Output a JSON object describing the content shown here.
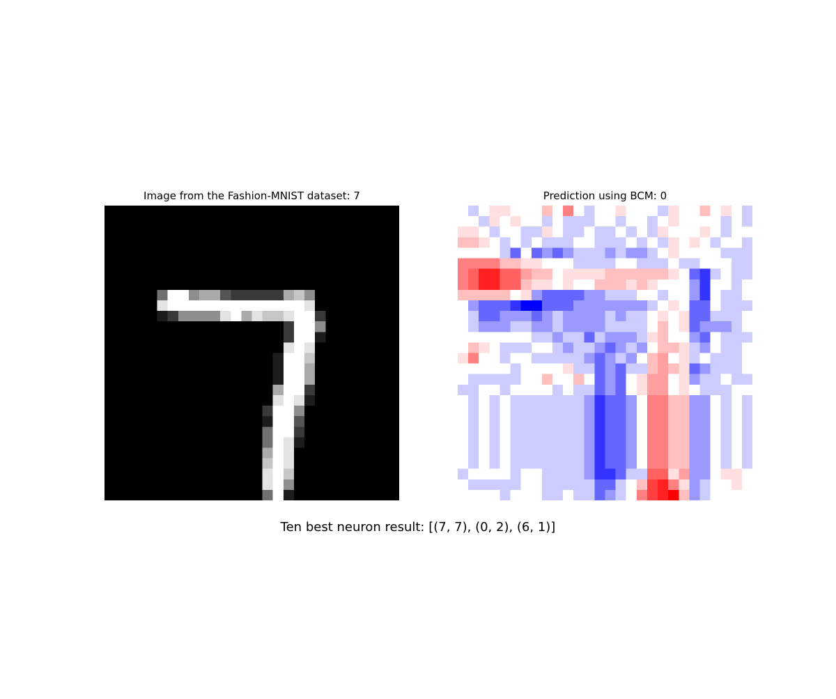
{
  "chart_data": [
    {
      "type": "heatmap",
      "title": "Image from the Fashion-MNIST dataset: 7",
      "colormap": "gray",
      "value_range": [
        0,
        1
      ],
      "grid": false,
      "axes": "off",
      "rows": [
        "0000000000000000000000000000",
        "0000000000000000000000000000",
        "0000000000000000000000000000",
        "0000000000000000000000000000",
        "0000000000000000000000000000",
        "0000000000000000000000000000",
        "0000000000000000000000000000",
        "0000000000000000000000000000",
        "0000000000000000000000000000",
        "0000000000000000000000000000",
        "0000000000000000000000000000",
        "0000000000000000000000000000",
        "0000000000000000000000000000",
        "0000000000000000000000000000",
        "0000000000000000000000000000",
        "0000000000000000000000000000",
        "0000000000000000000000000000",
        "0000000000000000000000000000",
        "0000000000000000000000000000",
        "0000000000000000000000000000",
        "0000000000000000000000000000",
        "0000000000000000000000000000",
        "0000000000000000000000000000",
        "0000000000000000000000000000",
        "0000000000000000000000000000",
        "0000000000000000000000000000",
        "0000000000000000000000000000",
        "0000000000000000000000000000"
      ],
      "patches": [
        {
          "row": 8,
          "cells": [
            [
              5,
              "4"
            ],
            [
              6,
              "9"
            ],
            [
              7,
              "9"
            ],
            [
              8,
              "5"
            ],
            [
              9,
              "6"
            ],
            [
              10,
              "6"
            ],
            [
              11,
              "3"
            ],
            [
              12,
              "2"
            ],
            [
              13,
              "2"
            ],
            [
              14,
              "2"
            ],
            [
              15,
              "2"
            ],
            [
              16,
              "2"
            ],
            [
              17,
              "6"
            ],
            [
              18,
              "7"
            ],
            [
              19,
              "5"
            ]
          ]
        },
        {
          "row": 9,
          "cells": [
            [
              5,
              "8"
            ],
            [
              6,
              "9"
            ],
            [
              7,
              "9"
            ],
            [
              8,
              "9"
            ],
            [
              9,
              "9"
            ],
            [
              10,
              "9"
            ],
            [
              11,
              "9"
            ],
            [
              12,
              "9"
            ],
            [
              13,
              "9"
            ],
            [
              14,
              "9"
            ],
            [
              15,
              "9"
            ],
            [
              16,
              "9"
            ],
            [
              17,
              "9"
            ],
            [
              18,
              "9"
            ],
            [
              19,
              "8"
            ]
          ]
        },
        {
          "row": 10,
          "cells": [
            [
              5,
              "1"
            ],
            [
              6,
              "2"
            ],
            [
              7,
              "5"
            ],
            [
              8,
              "5"
            ],
            [
              9,
              "5"
            ],
            [
              10,
              "5"
            ],
            [
              11,
              "8"
            ],
            [
              12,
              "9"
            ],
            [
              13,
              "6"
            ],
            [
              14,
              "8"
            ],
            [
              15,
              "7"
            ],
            [
              16,
              "7"
            ],
            [
              17,
              "8"
            ],
            [
              18,
              "9"
            ],
            [
              19,
              "9"
            ],
            [
              20,
              "2"
            ]
          ]
        },
        {
          "row": 11,
          "cells": [
            [
              17,
              "2"
            ],
            [
              18,
              "9"
            ],
            [
              19,
              "9"
            ],
            [
              20,
              "5"
            ]
          ]
        },
        {
          "row": 12,
          "cells": [
            [
              17,
              "2"
            ],
            [
              18,
              "9"
            ],
            [
              19,
              "9"
            ],
            [
              20,
              "1"
            ]
          ]
        },
        {
          "row": 13,
          "cells": [
            [
              17,
              "8"
            ],
            [
              18,
              "9"
            ],
            [
              19,
              "8"
            ]
          ]
        },
        {
          "row": 14,
          "cells": [
            [
              16,
              "1"
            ],
            [
              17,
              "9"
            ],
            [
              18,
              "9"
            ],
            [
              19,
              "7"
            ]
          ]
        },
        {
          "row": 15,
          "cells": [
            [
              16,
              "1"
            ],
            [
              17,
              "9"
            ],
            [
              18,
              "9"
            ],
            [
              19,
              "6"
            ]
          ]
        },
        {
          "row": 16,
          "cells": [
            [
              16,
              "1"
            ],
            [
              17,
              "9"
            ],
            [
              18,
              "9"
            ],
            [
              19,
              "6"
            ]
          ]
        },
        {
          "row": 17,
          "cells": [
            [
              16,
              "6"
            ],
            [
              17,
              "9"
            ],
            [
              18,
              "9"
            ],
            [
              19,
              "2"
            ]
          ]
        },
        {
          "row": 18,
          "cells": [
            [
              16,
              "8"
            ],
            [
              17,
              "9"
            ],
            [
              18,
              "8"
            ],
            [
              19,
              "1"
            ]
          ]
        },
        {
          "row": 19,
          "cells": [
            [
              15,
              "2"
            ],
            [
              16,
              "9"
            ],
            [
              17,
              "9"
            ],
            [
              18,
              "5"
            ]
          ]
        },
        {
          "row": 20,
          "cells": [
            [
              15,
              "1"
            ],
            [
              16,
              "9"
            ],
            [
              17,
              "9"
            ],
            [
              18,
              "3"
            ]
          ]
        },
        {
          "row": 21,
          "cells": [
            [
              15,
              "4"
            ],
            [
              16,
              "9"
            ],
            [
              17,
              "9"
            ],
            [
              18,
              "2"
            ]
          ]
        },
        {
          "row": 22,
          "cells": [
            [
              15,
              "4"
            ],
            [
              16,
              "9"
            ],
            [
              17,
              "8"
            ],
            [
              18,
              "1"
            ]
          ]
        },
        {
          "row": 23,
          "cells": [
            [
              15,
              "6"
            ],
            [
              16,
              "9"
            ],
            [
              17,
              "8"
            ]
          ]
        },
        {
          "row": 24,
          "cells": [
            [
              15,
              "7"
            ],
            [
              16,
              "9"
            ],
            [
              17,
              "8"
            ]
          ]
        },
        {
          "row": 25,
          "cells": [
            [
              15,
              "8"
            ],
            [
              16,
              "9"
            ],
            [
              17,
              "7"
            ]
          ]
        },
        {
          "row": 26,
          "cells": [
            [
              15,
              "8"
            ],
            [
              16,
              "9"
            ],
            [
              17,
              "5"
            ]
          ]
        },
        {
          "row": 27,
          "cells": [
            [
              15,
              "4"
            ],
            [
              16,
              "9"
            ],
            [
              17,
              "1"
            ]
          ]
        }
      ],
      "value_scale": "digit/9"
    },
    {
      "type": "heatmap",
      "title": "Prediction using BCM: 0",
      "colormap": "bwr",
      "value_range": [
        -1,
        1
      ],
      "grid": false,
      "axes": "off",
      "rows": [
        "fefggfffhfjfeffgfffegffhfgfe",
        "ffegfgffefeeeffeffefgffffefe",
        "ggfeffeegfeefeefefegfffgfeff",
        "hhgfefefeeeffeeefefegfgfeffe",
        "ffffecfcdcdeeededdefgffffeee",
        "jjjjhhggfffeeeeffeeefeefffee",
        "jkmmkkihhfgggghhhhhhgfcbefee",
        "jkmmkkhggfgffhhhghgfffdbffef",
        "hhhhhfgdccccddeeeffeffdbfeef",
        "fdcccbaacccdddddddefgfccfeee",
        "feccdddcdeddddedeefgfgcceeef",
        "fedddeeddeddddeeeefhfgcdddef",
        "fffffffeedeecedddeghffdcfeee",
        "fhgfeeeffedeedcdedfhhgedfeef",
        "gjffeffeeeeedcdedfhifgefeeef",
        "fffffeffffgeecdceehihgcdeeef",
        "feeeeeffhffhfcdcfgiifgdeefee",
        "eeffeffffefeecdcfgiifgfeeeff",
        "fefefeeeeeeedbccdfjjhhddfefe",
        "effffeffeeeedbbceekkgiddfggf",
        "feeeeeffeeeeeccefhlmjgdeffgf",
        "ffffefffeefeecdefjlmnhdeffff"
      ],
      "row_repeat_note": "22 of 28 rows read",
      "value_scale": "letter a=-1 (blue) … f=0 (white) … n=+1 (red)"
    }
  ],
  "suptitle": "Ten best neuron result: [(7, 7), (0, 2), (6, 1)]"
}
